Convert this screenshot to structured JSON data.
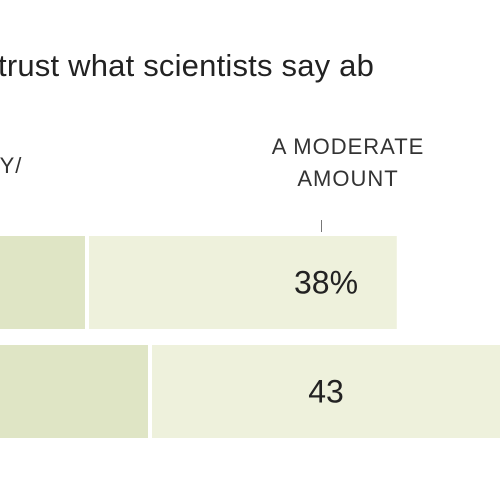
{
  "question": "trust what scientists say ab",
  "headers": {
    "left": "LY/",
    "middle_line1": "A MODERATE",
    "middle_line2": "AMOUNT"
  },
  "chart_data": {
    "type": "bar",
    "orientation": "horizontal",
    "stacked": true,
    "title": "trust what scientists say ab",
    "categories": [
      "",
      ""
    ],
    "series": [
      {
        "values": [
          null,
          null
        ],
        "color": "#dfe5c5"
      },
      {
        "name": "A MODERATE AMOUNT",
        "values": [
          38,
          43
        ],
        "labels": [
          "38%",
          "43"
        ],
        "color": "#eef1dc"
      }
    ]
  }
}
